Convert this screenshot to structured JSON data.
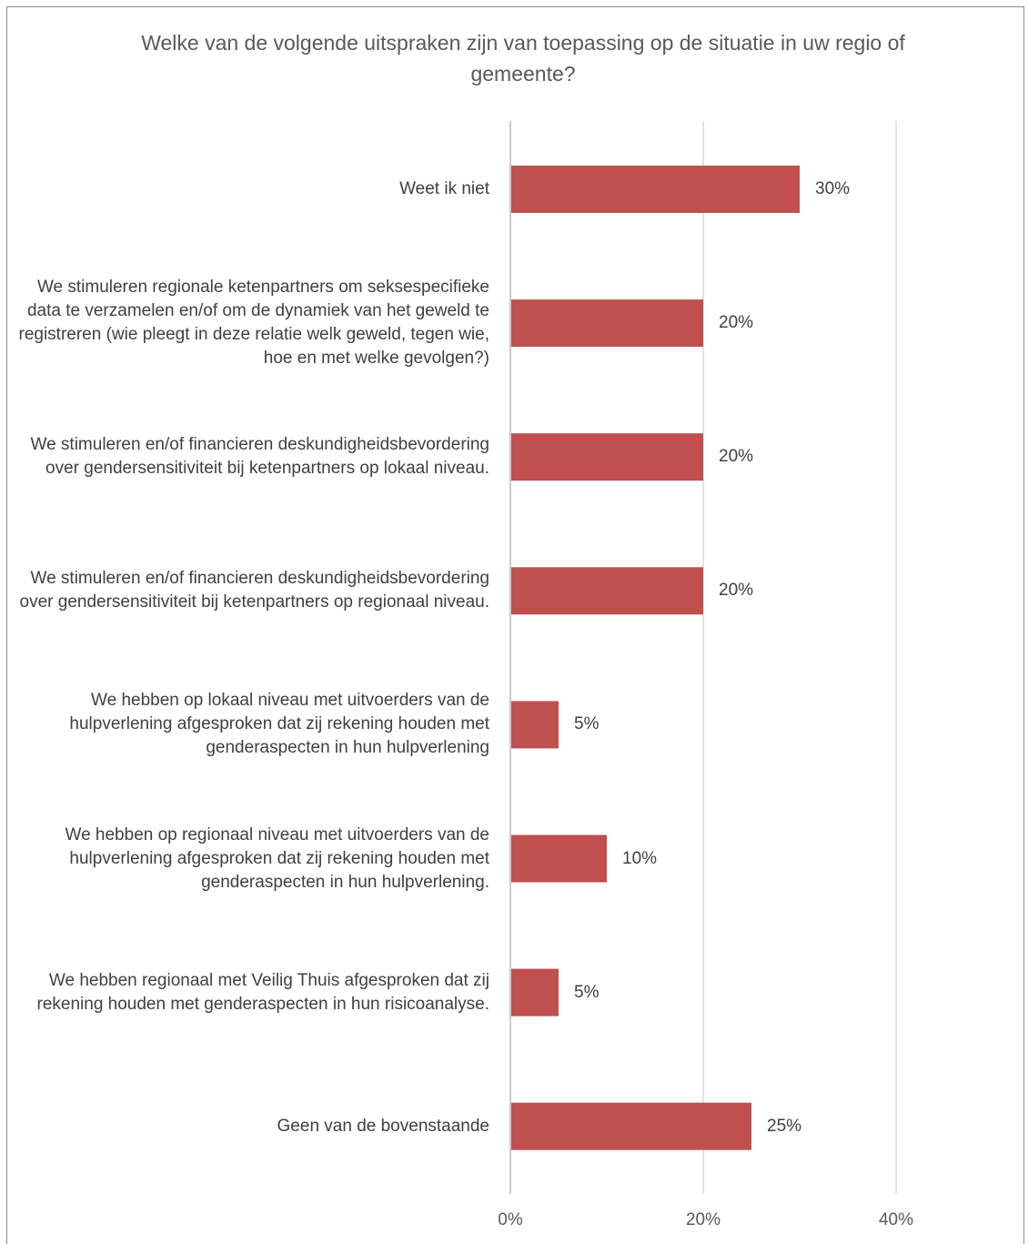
{
  "chart_data": {
    "type": "bar",
    "orientation": "horizontal",
    "title": "Welke van de volgende uitspraken zijn van toepassing op de situatie in uw regio of gemeente?",
    "xlabel": "",
    "ylabel": "",
    "xlim": [
      0,
      40
    ],
    "xticks": [
      0,
      20,
      40
    ],
    "xtick_labels": [
      "0%",
      "20%",
      "40%"
    ],
    "grid": true,
    "legend": "none",
    "bar_color": "#c0504d",
    "categories": [
      "Weet ik niet",
      "We stimuleren regionale ketenpartners om seksespecifieke data te verzamelen en/of om de dynamiek van het geweld te registreren (wie pleegt in deze relatie welk geweld, tegen wie, hoe en met welke gevolgen?)",
      "We stimuleren en/of financieren deskundigheidsbevordering over gendersensitiviteit bij ketenpartners op lokaal niveau.",
      "We stimuleren en/of financieren deskundigheidsbevordering over gendersensitiviteit bij ketenpartners op regionaal niveau.",
      "We hebben op lokaal niveau met uitvoerders van de hulpverlening afgesproken dat zij rekening houden met genderaspecten in hun hulpverlening",
      "We hebben op regionaal niveau met uitvoerders van de hulpverlening afgesproken dat zij rekening houden met genderaspecten in hun hulpverlening.",
      "We hebben regionaal met Veilig Thuis afgesproken dat zij rekening houden met genderaspecten in hun risicoanalyse.",
      "Geen van de bovenstaande"
    ],
    "values": [
      30,
      20,
      20,
      20,
      5,
      10,
      5,
      25
    ],
    "value_labels": [
      "30%",
      "20%",
      "20%",
      "20%",
      "5%",
      "10%",
      "5%",
      "25%"
    ]
  }
}
